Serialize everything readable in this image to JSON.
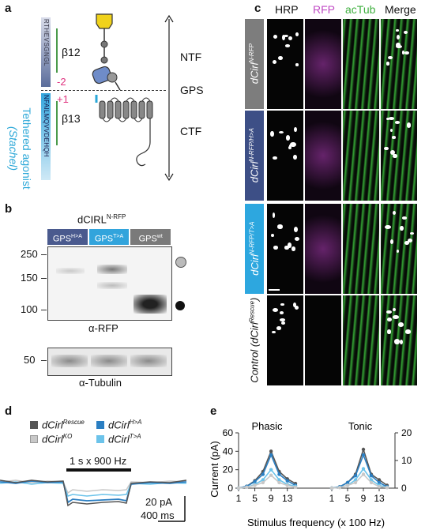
{
  "panel_labels": {
    "a": "a",
    "b": "b",
    "c": "c",
    "d": "d",
    "e": "e"
  },
  "panel_a": {
    "beta12": "β12",
    "beta13": "β13",
    "minus2": "-2",
    "plus1": "+1",
    "ntf": "NTF",
    "gps": "GPS",
    "ctf": "CTF",
    "side_line1": "Tethered agonist",
    "side_line2": "(Stachel)",
    "seq_top": "RTHEVSGNGL",
    "seq_bottom": "NFAILMQVVDEHQH",
    "colors": {
      "beta12_bar": "#4a9a4a",
      "minus2": "#e0327f",
      "ntf_strip": "#5b6d9b",
      "ctf_strip": "#34a6dd",
      "accent": "#2aa7d8"
    }
  },
  "panel_b": {
    "title": "dCIRL",
    "title_sup": "N-RFP",
    "lanes": [
      {
        "base": "GPS",
        "sup": "H>A",
        "color": "#4a5a8e"
      },
      {
        "base": "GPS",
        "sup": "T>A",
        "color": "#32a4dc"
      },
      {
        "base": "GPS",
        "sup": "wt",
        "color": "#7a7a7a"
      }
    ],
    "markers_top": [
      "250",
      "150",
      "100"
    ],
    "markers_bottom": [
      "50"
    ],
    "rfp_label": "α-RFP",
    "tub_label": "α-Tubulin"
  },
  "panel_c": {
    "columns": [
      {
        "label": "HRP",
        "color": "#111111"
      },
      {
        "label": "RFP",
        "color": "#c04ac4"
      },
      {
        "label": "acTub",
        "color": "#3fb03f"
      },
      {
        "label": "Merge",
        "color": "#111111"
      }
    ],
    "rows": [
      {
        "base": "dCirl",
        "sup": "N-RFP",
        "bg": "#7d7d7d"
      },
      {
        "base": "dCirl",
        "sup": "N-RFP/H>A",
        "bg": "#3d4f86"
      },
      {
        "base": "dCirl",
        "sup": "N-RFP/T>A",
        "bg": "#2da7df"
      },
      {
        "base": "Control (dCirl",
        "sup": "Rescue",
        "tail": ")",
        "bg": "#ffffff"
      }
    ]
  },
  "panel_d": {
    "legend": [
      {
        "base": "dCirl",
        "sup": "Rescue",
        "color": "#555555"
      },
      {
        "base": "dCirl",
        "sup": "H>A",
        "color": "#2a7ec2"
      },
      {
        "base": "dCirl",
        "sup": "KO",
        "color": "#c8c8c8"
      },
      {
        "base": "dCirl",
        "sup": "T>A",
        "color": "#6cc3ea"
      }
    ],
    "stimulus": "1 s x 900 Hz",
    "scale_y": "20 pA",
    "scale_x": "400 ms"
  },
  "panel_e": {
    "phasic": "Phasic",
    "tonic": "Tonic",
    "ylabel": "Current (pA)",
    "xlabel": "Stimulus frequency (x 100 Hz)"
  },
  "chart_data": {
    "type": "line",
    "x": [
      1,
      3,
      5,
      7,
      9,
      11,
      13,
      15
    ],
    "xticks": [
      "1",
      "5",
      "9",
      "13"
    ],
    "left_axis": {
      "label": "Current (pA)",
      "ticks": [
        "0",
        "20",
        "40",
        "60"
      ],
      "ylim": [
        0,
        60
      ]
    },
    "right_axis": {
      "ticks": [
        "0",
        "10",
        "20"
      ],
      "ylim": [
        0,
        20
      ]
    },
    "panels": [
      {
        "title": "Phasic",
        "axis": "left",
        "series": [
          {
            "name": "dCirl Rescue",
            "color": "#555555",
            "values": [
              0,
              2,
              8,
              18,
              40,
              18,
              10,
              5
            ]
          },
          {
            "name": "dCirl H>A",
            "color": "#2a7ec2",
            "values": [
              0,
              2,
              7,
              15,
              36,
              15,
              8,
              3
            ]
          },
          {
            "name": "dCirl T>A",
            "color": "#6cc3ea",
            "values": [
              0,
              1,
              4,
              9,
              20,
              9,
              4,
              2
            ]
          },
          {
            "name": "dCirl KO",
            "color": "#c8c8c8",
            "values": [
              0,
              1,
              3,
              6,
              14,
              6,
              3,
              1
            ]
          }
        ]
      },
      {
        "title": "Tonic",
        "axis": "right",
        "series": [
          {
            "name": "dCirl Rescue",
            "color": "#555555",
            "values": [
              0,
              0.5,
              2,
              5,
              14,
              5,
              3,
              1
            ]
          },
          {
            "name": "dCirl H>A",
            "color": "#2a7ec2",
            "values": [
              0,
              0.5,
              2,
              4.5,
              12,
              4.5,
              2,
              0.5
            ]
          },
          {
            "name": "dCirl T>A",
            "color": "#6cc3ea",
            "values": [
              0,
              0.3,
              1,
              3,
              7,
              3,
              1,
              0.3
            ]
          },
          {
            "name": "dCirl KO",
            "color": "#c8c8c8",
            "values": [
              0,
              0.2,
              1,
              2,
              5,
              2,
              0.5,
              0.2
            ]
          }
        ]
      }
    ]
  }
}
